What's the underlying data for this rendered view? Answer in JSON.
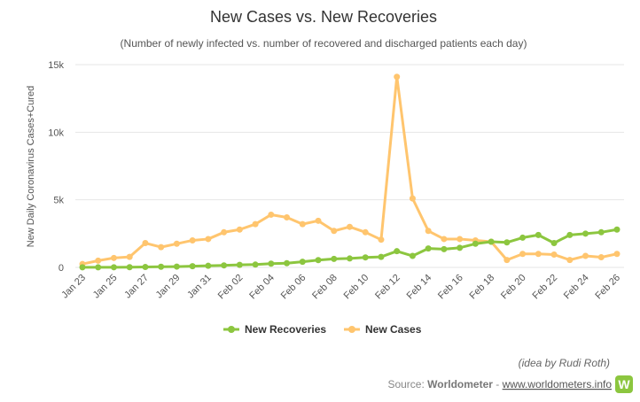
{
  "chart_data": {
    "type": "line",
    "title": "New Cases vs. New Recoveries",
    "subtitle": "(Number of newly infected vs. number of recovered and discharged patients each day)",
    "ylabel": "New Daily Coronavirus Cases+Cured",
    "xlabel": "",
    "ylim": [
      0,
      15000
    ],
    "yticks": [
      {
        "value": 0,
        "label": "0"
      },
      {
        "value": 5000,
        "label": "5k"
      },
      {
        "value": 10000,
        "label": "10k"
      },
      {
        "value": 15000,
        "label": "15k"
      }
    ],
    "x": [
      "Jan 23",
      "Jan 24",
      "Jan 25",
      "Jan 26",
      "Jan 27",
      "Jan 28",
      "Jan 29",
      "Jan 30",
      "Jan 31",
      "Feb 01",
      "Feb 02",
      "Feb 03",
      "Feb 04",
      "Feb 05",
      "Feb 06",
      "Feb 07",
      "Feb 08",
      "Feb 09",
      "Feb 10",
      "Feb 11",
      "Feb 12",
      "Feb 13",
      "Feb 14",
      "Feb 15",
      "Feb 16",
      "Feb 17",
      "Feb 18",
      "Feb 19",
      "Feb 20",
      "Feb 21",
      "Feb 22",
      "Feb 23",
      "Feb 24",
      "Feb 25",
      "Feb 26"
    ],
    "xtick_labels": [
      "Jan 23",
      "Jan 25",
      "Jan 27",
      "Jan 29",
      "Jan 31",
      "Feb 02",
      "Feb 04",
      "Feb 06",
      "Feb 08",
      "Feb 10",
      "Feb 12",
      "Feb 14",
      "Feb 16",
      "Feb 18",
      "Feb 20",
      "Feb 22",
      "Feb 24",
      "Feb 26"
    ],
    "series": [
      {
        "name": "New Recoveries",
        "color": "#8cc63f",
        "values": [
          8,
          10,
          12,
          18,
          30,
          50,
          60,
          90,
          120,
          150,
          190,
          210,
          280,
          310,
          420,
          540,
          630,
          660,
          740,
          780,
          1200,
          850,
          1400,
          1350,
          1450,
          1750,
          1900,
          1850,
          2200,
          2400,
          1800,
          2400,
          2500,
          2600,
          2800
        ]
      },
      {
        "name": "New Cases",
        "color": "#ffc56e",
        "values": [
          250,
          500,
          700,
          780,
          1800,
          1500,
          1750,
          2000,
          2100,
          2600,
          2800,
          3200,
          3900,
          3700,
          3200,
          3450,
          2700,
          3000,
          2600,
          2050,
          14100,
          5100,
          2700,
          2100,
          2100,
          2000,
          1900,
          550,
          1000,
          1000,
          950,
          550,
          850,
          750,
          1000
        ]
      }
    ],
    "grid": true,
    "legend": "bottom-center"
  },
  "credit": "(idea by Rudi Roth)",
  "source": {
    "prefix": "Source: ",
    "name": "Worldometer",
    "separator": " - ",
    "link": "www.worldometers.info"
  },
  "logo_letter": "W",
  "colors": {
    "recoveries": "#8cc63f",
    "cases": "#ffc56e",
    "grid": "#e6e6e6",
    "logo": "#8cc63f"
  }
}
